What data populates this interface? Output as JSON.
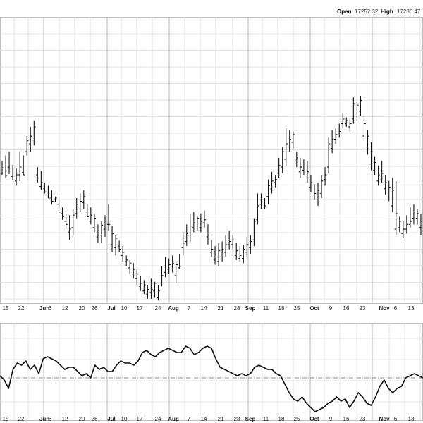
{
  "header": {
    "open_label": "Open",
    "open_value": "17252.32",
    "high_label": "High",
    "high_value": "17286.47"
  },
  "chart_data": [
    {
      "type": "ohlc",
      "title": "",
      "grid": true,
      "x_tick_labels": [
        {
          "label": "15",
          "bold": false
        },
        {
          "label": "22",
          "bold": false
        },
        {
          "label": "Jun",
          "bold": true
        },
        {
          "label": "6",
          "bold": false
        },
        {
          "label": "12",
          "bold": false
        },
        {
          "label": "20",
          "bold": false
        },
        {
          "label": "26",
          "bold": false
        },
        {
          "label": "Jul",
          "bold": true
        },
        {
          "label": "10",
          "bold": false
        },
        {
          "label": "17",
          "bold": false
        },
        {
          "label": "24",
          "bold": false
        },
        {
          "label": "Aug",
          "bold": true
        },
        {
          "label": "7",
          "bold": false
        },
        {
          "label": "14",
          "bold": false
        },
        {
          "label": "21",
          "bold": false
        },
        {
          "label": "28",
          "bold": false
        },
        {
          "label": "Sep",
          "bold": true
        },
        {
          "label": "11",
          "bold": false
        },
        {
          "label": "18",
          "bold": false
        },
        {
          "label": "25",
          "bold": false
        },
        {
          "label": "Oct",
          "bold": true
        },
        {
          "label": "9",
          "bold": false
        },
        {
          "label": "16",
          "bold": false
        },
        {
          "label": "23",
          "bold": false
        },
        {
          "label": "Nov",
          "bold": true
        },
        {
          "label": "6",
          "bold": false
        },
        {
          "label": "13",
          "bold": false
        }
      ],
      "ohlc_note": "relative price levels (no price axis printed); [high, low, open, close]",
      "bars": [
        [
          300,
          318,
          302,
          309
        ],
        [
          296,
          325,
          305,
          299
        ],
        [
          301,
          330,
          310,
          305
        ],
        [
          293,
          313,
          298,
          296
        ],
        [
          286,
          308,
          292,
          300
        ],
        [
          292,
          330,
          300,
          310
        ],
        [
          300,
          325,
          303,
          300
        ],
        [
          325,
          350,
          330,
          344
        ],
        [
          330,
          362,
          340,
          350
        ],
        [
          338,
          370,
          345,
          362
        ],
        [
          290,
          310,
          300,
          296
        ],
        [
          280,
          305,
          285,
          290
        ],
        [
          276,
          290,
          282,
          278
        ],
        [
          270,
          286,
          274,
          270
        ],
        [
          262,
          280,
          270,
          266
        ],
        [
          265,
          272,
          268,
          270
        ],
        [
          256,
          272,
          262,
          252
        ],
        [
          242,
          258,
          250,
          246
        ],
        [
          230,
          250,
          240,
          236
        ],
        [
          216,
          248,
          226,
          230
        ],
        [
          222,
          256,
          232,
          248
        ],
        [
          244,
          270,
          250,
          262
        ],
        [
          252,
          276,
          256,
          266
        ],
        [
          256,
          280,
          264,
          272
        ],
        [
          246,
          262,
          252,
          246
        ],
        [
          236,
          258,
          240,
          248
        ],
        [
          226,
          250,
          232,
          244
        ],
        [
          212,
          236,
          220,
          228
        ],
        [
          212,
          240,
          222,
          235
        ],
        [
          220,
          248,
          230,
          240
        ],
        [
          228,
          262,
          236,
          236
        ],
        [
          200,
          234,
          210,
          224
        ],
        [
          196,
          222,
          206,
          218
        ],
        [
          200,
          215,
          208,
          204
        ],
        [
          188,
          208,
          196,
          200
        ],
        [
          182,
          196,
          188,
          190
        ],
        [
          172,
          190,
          180,
          186
        ],
        [
          166,
          186,
          172,
          178
        ],
        [
          158,
          178,
          166,
          172
        ],
        [
          150,
          170,
          156,
          160
        ],
        [
          146,
          164,
          150,
          158
        ],
        [
          140,
          158,
          146,
          152
        ],
        [
          140,
          166,
          148,
          152
        ],
        [
          142,
          162,
          150,
          160
        ],
        [
          138,
          158,
          142,
          150
        ],
        [
          156,
          182,
          160,
          170
        ],
        [
          168,
          194,
          174,
          182
        ],
        [
          172,
          192,
          178,
          184
        ],
        [
          174,
          196,
          182,
          186
        ],
        [
          160,
          188,
          170,
          184
        ],
        [
          178,
          198,
          180,
          182
        ],
        [
          196,
          226,
          206,
          212
        ],
        [
          208,
          236,
          214,
          224
        ],
        [
          214,
          250,
          222,
          234
        ],
        [
          226,
          252,
          232,
          238
        ],
        [
          228,
          246,
          234,
          244
        ],
        [
          226,
          250,
          232,
          240
        ],
        [
          232,
          254,
          238,
          242
        ],
        [
          210,
          236,
          220,
          222
        ],
        [
          194,
          216,
          200,
          204
        ],
        [
          184,
          208,
          190,
          194
        ],
        [
          182,
          212,
          188,
          202
        ],
        [
          188,
          214,
          194,
          204
        ],
        [
          194,
          222,
          200,
          210
        ],
        [
          204,
          228,
          210,
          214
        ],
        [
          204,
          222,
          210,
          216
        ],
        [
          190,
          212,
          196,
          202
        ],
        [
          188,
          208,
          192,
          196
        ],
        [
          186,
          210,
          192,
          204
        ],
        [
          194,
          220,
          200,
          210
        ],
        [
          198,
          222,
          206,
          214
        ],
        [
          208,
          244,
          216,
          240
        ],
        [
          236,
          276,
          242,
          260
        ],
        [
          256,
          276,
          262,
          268
        ],
        [
          256,
          270,
          262,
          260
        ],
        [
          262,
          294,
          272,
          286
        ],
        [
          276,
          304,
          282,
          292
        ],
        [
          284,
          300,
          290,
          294
        ],
        [
          296,
          322,
          302,
          312
        ],
        [
          302,
          336,
          310,
          330
        ],
        [
          312,
          360,
          320,
          340
        ],
        [
          330,
          358,
          336,
          346
        ],
        [
          334,
          356,
          342,
          352
        ],
        [
          310,
          330,
          318,
          322
        ],
        [
          296,
          322,
          304,
          310
        ],
        [
          300,
          320,
          306,
          314
        ],
        [
          290,
          318,
          296,
          304
        ],
        [
          278,
          300,
          284,
          290
        ],
        [
          268,
          288,
          274,
          276
        ],
        [
          260,
          290,
          268,
          280
        ],
        [
          270,
          300,
          276,
          292
        ],
        [
          286,
          310,
          294,
          300
        ],
        [
          302,
          348,
          310,
          340
        ],
        [
          328,
          358,
          334,
          346
        ],
        [
          340,
          360,
          346,
          352
        ],
        [
          348,
          366,
          354,
          356
        ],
        [
          360,
          380,
          366,
          372
        ],
        [
          362,
          374,
          366,
          370
        ],
        [
          356,
          372,
          362,
          366
        ],
        [
          366,
          400,
          372,
          392
        ],
        [
          370,
          394,
          376,
          390
        ],
        [
          376,
          402,
          382,
          396
        ],
        [
          344,
          376,
          350,
          366
        ],
        [
          326,
          358,
          336,
          350
        ],
        [
          306,
          342,
          314,
          330
        ],
        [
          300,
          324,
          306,
          316
        ],
        [
          286,
          312,
          292,
          300
        ],
        [
          290,
          318,
          296,
          302
        ],
        [
          274,
          300,
          282,
          290
        ],
        [
          266,
          292,
          274,
          284
        ],
        [
          252,
          296,
          260,
          280
        ],
        [
          222,
          292,
          230,
          250
        ],
        [
          226,
          246,
          232,
          240
        ],
        [
          218,
          240,
          224,
          230
        ],
        [
          224,
          248,
          230,
          236
        ],
        [
          232,
          258,
          236,
          240
        ],
        [
          236,
          262,
          244,
          252
        ],
        [
          236,
          256,
          244,
          250
        ],
        [
          222,
          250,
          232,
          240
        ]
      ]
    },
    {
      "type": "line",
      "title": "",
      "grid": true,
      "reference_line": 0,
      "ylim": [
        -1,
        1
      ],
      "values": [
        0.05,
        -0.05,
        -0.25,
        0.2,
        0.35,
        0.3,
        0.4,
        0.2,
        0.3,
        0.1,
        0.45,
        0.5,
        0.45,
        0.4,
        0.3,
        0.2,
        0.25,
        0.25,
        0.15,
        0.05,
        0.1,
        0.0,
        0.3,
        0.2,
        0.25,
        0.15,
        0.15,
        0.3,
        0.4,
        0.35,
        0.35,
        0.3,
        0.4,
        0.6,
        0.65,
        0.55,
        0.5,
        0.6,
        0.65,
        0.7,
        0.65,
        0.6,
        0.6,
        0.75,
        0.7,
        0.55,
        0.6,
        0.7,
        0.75,
        0.7,
        0.45,
        0.25,
        0.2,
        0.15,
        0.1,
        0.05,
        0.1,
        0.05,
        0.1,
        0.25,
        0.3,
        0.25,
        0.2,
        0.2,
        0.1,
        0.05,
        -0.15,
        -0.35,
        -0.5,
        -0.55,
        -0.45,
        -0.6,
        -0.7,
        -0.8,
        -0.75,
        -0.7,
        -0.6,
        -0.55,
        -0.45,
        -0.55,
        -0.5,
        -0.7,
        -0.55,
        -0.35,
        -0.45,
        -0.6,
        -0.65,
        -0.45,
        -0.2,
        -0.05,
        -0.25,
        -0.35,
        -0.25,
        -0.2,
        0.0,
        0.05,
        0.1,
        0.05,
        0.0
      ]
    }
  ]
}
